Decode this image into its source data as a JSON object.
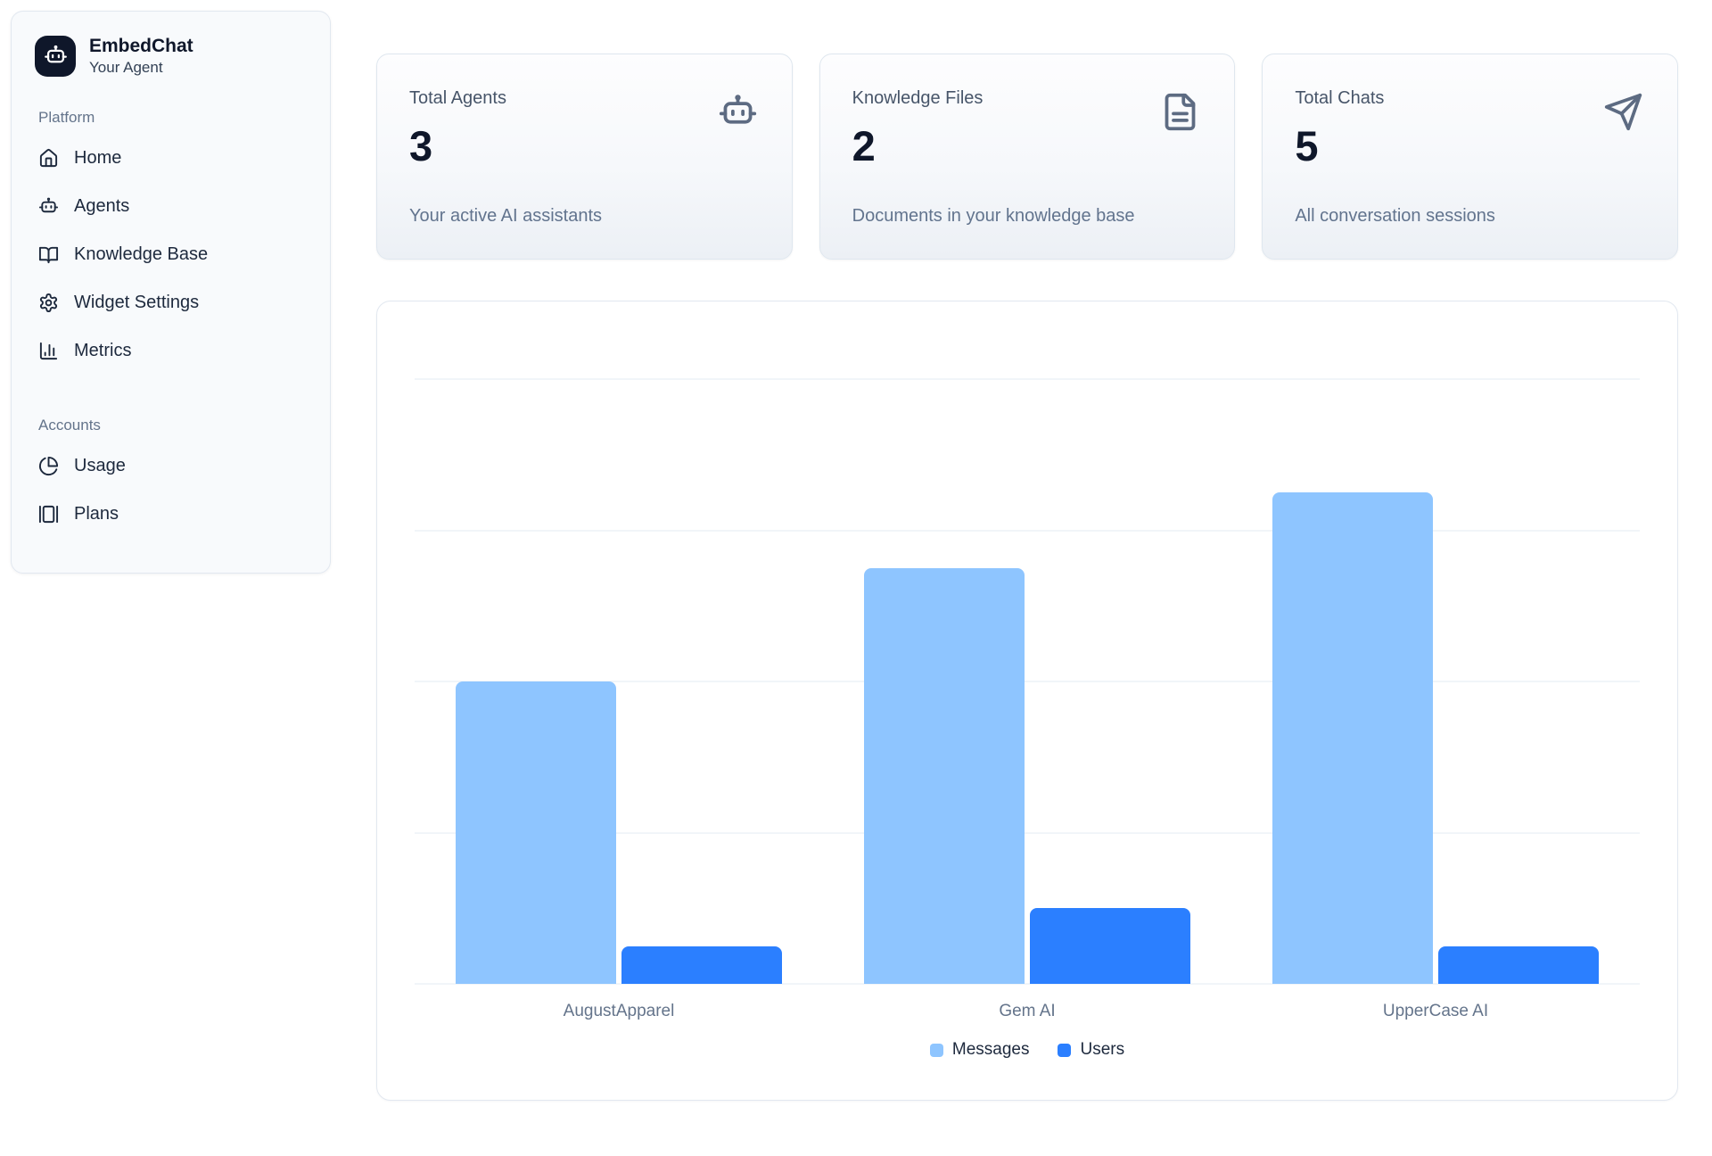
{
  "app": {
    "name": "EmbedChat",
    "tagline": "Your Agent"
  },
  "sidebar": {
    "sections": [
      {
        "label": "Platform",
        "items": [
          {
            "label": "Home",
            "icon": "home-icon"
          },
          {
            "label": "Agents",
            "icon": "bot-icon"
          },
          {
            "label": "Knowledge Base",
            "icon": "book-open-icon"
          },
          {
            "label": "Widget Settings",
            "icon": "gear-icon"
          },
          {
            "label": "Metrics",
            "icon": "chart-column-icon"
          }
        ]
      },
      {
        "label": "Accounts",
        "items": [
          {
            "label": "Usage",
            "icon": "pie-chart-icon"
          },
          {
            "label": "Plans",
            "icon": "plans-cards-icon"
          }
        ]
      }
    ]
  },
  "stats": [
    {
      "title": "Total Agents",
      "value": "3",
      "subtitle": "Your active AI assistants",
      "icon": "bot-icon"
    },
    {
      "title": "Knowledge Files",
      "value": "2",
      "subtitle": "Documents in your knowledge base",
      "icon": "file-text-icon"
    },
    {
      "title": "Total Chats",
      "value": "5",
      "subtitle": "All conversation sessions",
      "icon": "send-icon"
    }
  ],
  "chart_data": {
    "type": "bar",
    "categories": [
      "AugustApparel",
      "Gem AI",
      "UpperCase AI"
    ],
    "series": [
      {
        "name": "Messages",
        "color": "#8ec5ff",
        "values": [
          8,
          11,
          13
        ]
      },
      {
        "name": "Users",
        "color": "#2b7fff",
        "values": [
          1,
          2,
          1
        ]
      }
    ],
    "title": "",
    "xlabel": "",
    "ylabel": "",
    "ylim": [
      0,
      16
    ],
    "gridlines": 4,
    "grid": true,
    "y_axis_labels_visible": false,
    "legend_position": "bottom"
  },
  "colors": {
    "brand_logo_bg": "#0f172a",
    "messages_bar": "#8ec5ff",
    "users_bar": "#2b7fff",
    "card_border": "#dfe7ef",
    "gridline": "#f1f5f9"
  }
}
